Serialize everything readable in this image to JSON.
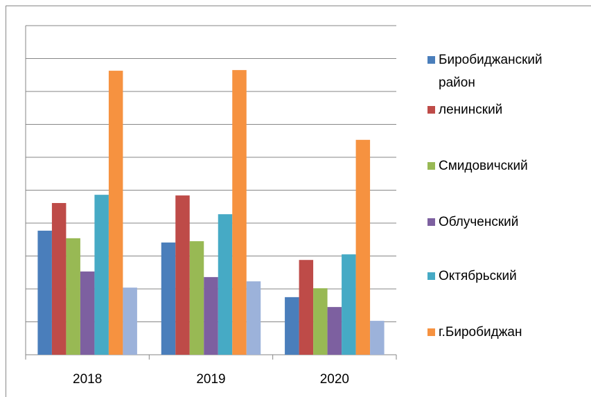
{
  "chart_data": {
    "type": "bar",
    "categories": [
      "2018",
      "2019",
      "2020"
    ],
    "series": [
      {
        "name": "Биробиджанский район",
        "color": "#4a7ebb",
        "values": [
          3.77,
          3.41,
          1.75
        ]
      },
      {
        "name": "ленинский",
        "color": "#be4b48",
        "values": [
          4.61,
          4.84,
          2.88
        ]
      },
      {
        "name": "Смидовичский",
        "color": "#98b954",
        "values": [
          3.54,
          3.45,
          2.02
        ]
      },
      {
        "name": "Облученский",
        "color": "#7d60a0",
        "values": [
          2.53,
          2.36,
          1.45
        ]
      },
      {
        "name": "Октябрьский",
        "color": "#46aac5",
        "values": [
          4.86,
          4.27,
          3.05
        ]
      },
      {
        "name": "г.Биробиджан",
        "color": "#f69240",
        "values": [
          8.63,
          8.65,
          6.53
        ]
      },
      {
        "name": null,
        "color": "#9cb2da",
        "values": [
          2.04,
          2.23,
          1.03
        ]
      }
    ],
    "ylim": [
      0,
      10
    ],
    "yticks": [
      0,
      1,
      2,
      3,
      4,
      5,
      6,
      7,
      8,
      9,
      10
    ],
    "grid": true,
    "legend": "right"
  }
}
